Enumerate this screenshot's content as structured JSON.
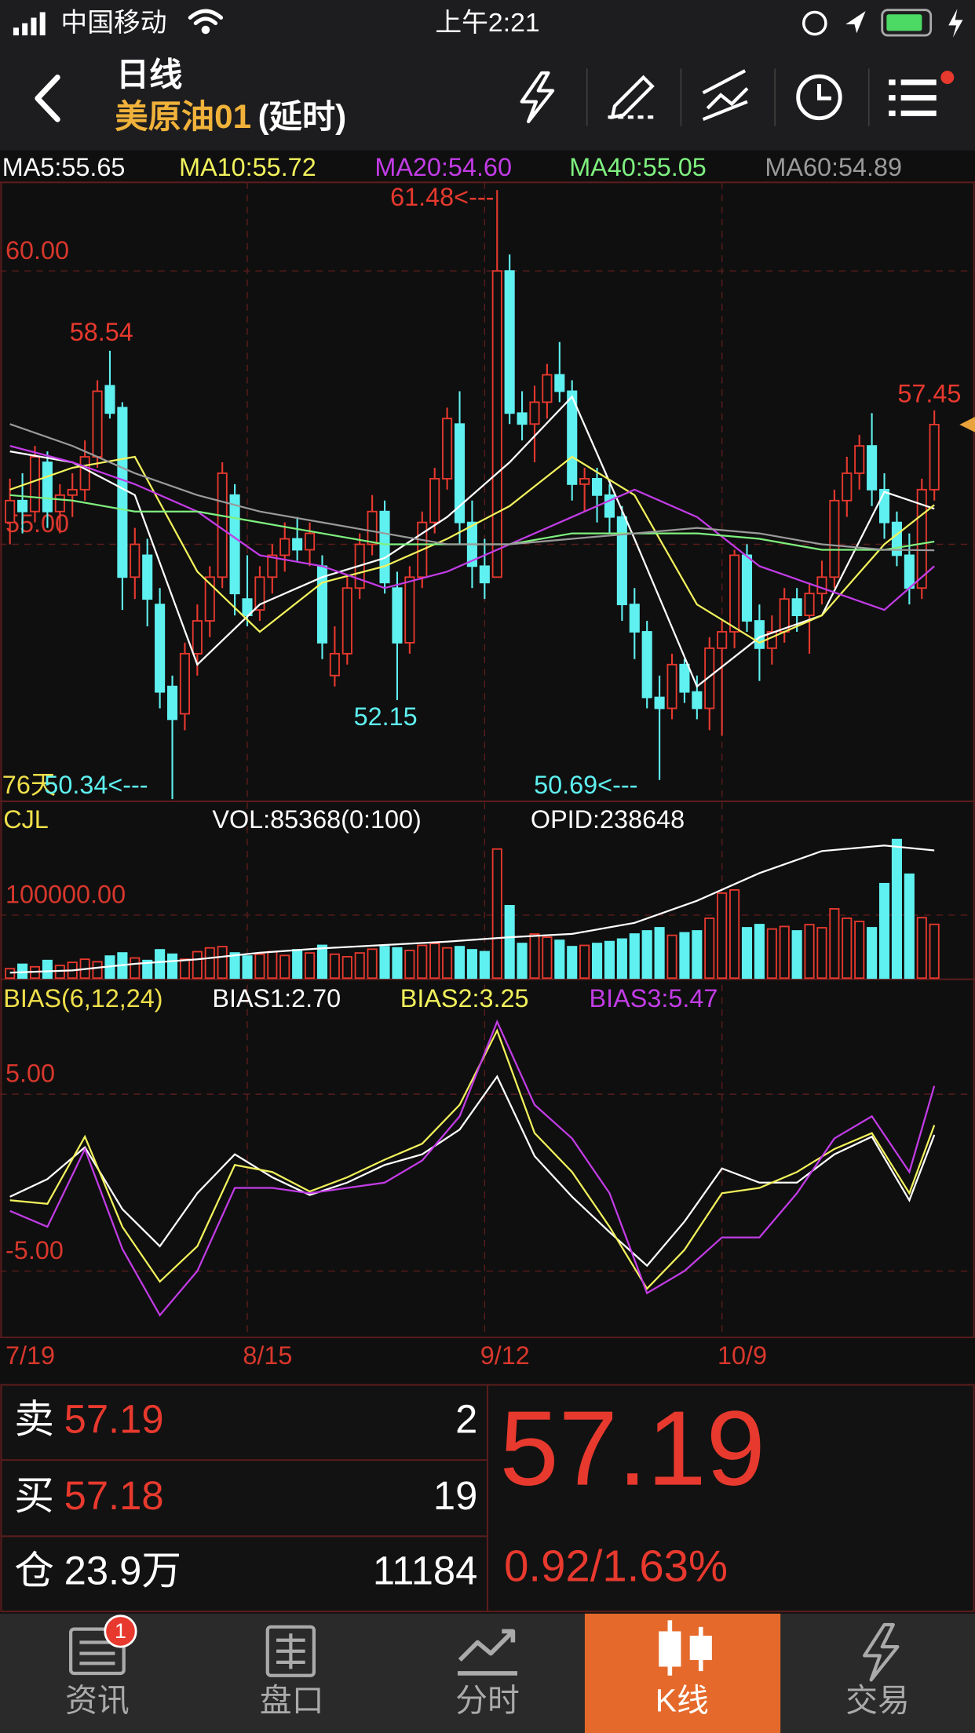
{
  "status_bar": {
    "carrier": "中国移动",
    "time": "上午2:21"
  },
  "header": {
    "title": "日线",
    "symbol": "美原油01",
    "delay": "(延时)"
  },
  "chart_data": [
    {
      "type": "candlestick",
      "categories": [
        "7/19",
        null,
        null,
        null,
        null,
        null,
        null,
        null,
        null,
        null,
        null,
        null,
        null,
        null,
        null,
        null,
        null,
        null,
        null,
        "8/15",
        null,
        null,
        null,
        null,
        null,
        null,
        null,
        null,
        null,
        null,
        null,
        null,
        null,
        null,
        null,
        null,
        null,
        null,
        "9/12",
        null,
        null,
        null,
        null,
        null,
        null,
        null,
        null,
        null,
        null,
        null,
        null,
        null,
        null,
        null,
        null,
        null,
        null,
        "10/9",
        null,
        null,
        null,
        null,
        null,
        null,
        null,
        null,
        null,
        null,
        null,
        null,
        null,
        null,
        null,
        null,
        null
      ],
      "ohlc": [
        [
          55.4,
          56.2,
          55.0,
          55.8
        ],
        [
          55.8,
          56.3,
          55.2,
          55.6
        ],
        [
          55.6,
          56.8,
          55.4,
          56.6
        ],
        [
          56.5,
          56.7,
          55.3,
          55.6
        ],
        [
          55.6,
          56.1,
          55.2,
          55.9
        ],
        [
          55.9,
          56.3,
          55.5,
          56.0
        ],
        [
          56.0,
          56.9,
          55.8,
          56.6
        ],
        [
          56.6,
          58.0,
          56.4,
          57.8
        ],
        [
          57.9,
          58.54,
          57.3,
          57.4
        ],
        [
          57.5,
          57.6,
          53.8,
          54.4
        ],
        [
          54.4,
          55.3,
          54.0,
          55.0
        ],
        [
          54.8,
          55.1,
          53.5,
          54.0
        ],
        [
          53.9,
          54.2,
          52.0,
          52.3
        ],
        [
          52.4,
          52.6,
          50.34,
          51.8
        ],
        [
          51.9,
          53.2,
          51.6,
          53.0
        ],
        [
          53.0,
          53.9,
          52.6,
          53.6
        ],
        [
          53.6,
          54.6,
          53.3,
          54.4
        ],
        [
          54.4,
          56.5,
          54.2,
          56.3
        ],
        [
          55.9,
          56.1,
          53.7,
          54.1
        ],
        [
          54.0,
          54.8,
          53.5,
          53.7
        ],
        [
          53.8,
          54.6,
          53.6,
          54.4
        ],
        [
          54.4,
          55.0,
          54.1,
          54.8
        ],
        [
          54.8,
          55.4,
          54.5,
          55.1
        ],
        [
          55.1,
          55.5,
          54.7,
          54.9
        ],
        [
          54.9,
          55.4,
          54.6,
          55.2
        ],
        [
          54.6,
          54.8,
          52.9,
          53.2
        ],
        [
          52.6,
          53.5,
          52.4,
          53.0
        ],
        [
          53.0,
          54.4,
          52.8,
          54.2
        ],
        [
          54.2,
          55.2,
          54.0,
          55.0
        ],
        [
          55.0,
          55.9,
          54.8,
          55.6
        ],
        [
          55.6,
          55.8,
          54.1,
          54.3
        ],
        [
          54.2,
          54.5,
          52.15,
          53.2
        ],
        [
          53.2,
          54.6,
          53.0,
          54.4
        ],
        [
          54.4,
          55.6,
          54.2,
          55.4
        ],
        [
          55.4,
          56.4,
          55.2,
          56.2
        ],
        [
          56.2,
          57.5,
          56.0,
          57.3
        ],
        [
          57.2,
          57.8,
          55.0,
          55.4
        ],
        [
          55.4,
          55.8,
          54.2,
          54.6
        ],
        [
          54.6,
          55.1,
          54.0,
          54.3
        ],
        [
          54.4,
          61.48,
          54.4,
          60.0
        ],
        [
          60.0,
          60.3,
          57.2,
          57.4
        ],
        [
          57.4,
          57.8,
          56.9,
          57.2
        ],
        [
          57.2,
          57.9,
          56.5,
          57.6
        ],
        [
          57.6,
          58.3,
          57.3,
          58.1
        ],
        [
          58.1,
          58.7,
          57.6,
          57.8
        ],
        [
          57.8,
          58.0,
          55.8,
          56.1
        ],
        [
          56.1,
          56.4,
          55.6,
          56.2
        ],
        [
          56.2,
          56.4,
          55.4,
          55.9
        ],
        [
          55.9,
          56.1,
          55.2,
          55.5
        ],
        [
          55.5,
          55.7,
          53.6,
          53.9
        ],
        [
          53.9,
          54.2,
          52.9,
          53.4
        ],
        [
          53.4,
          53.6,
          52.0,
          52.2
        ],
        [
          52.2,
          52.6,
          50.69,
          52.0
        ],
        [
          52.0,
          53.0,
          51.8,
          52.8
        ],
        [
          52.8,
          52.9,
          52.1,
          52.3
        ],
        [
          52.3,
          52.6,
          51.8,
          52.0
        ],
        [
          52.0,
          53.3,
          51.6,
          53.1
        ],
        [
          53.1,
          53.6,
          51.5,
          53.4
        ],
        [
          53.4,
          54.9,
          53.1,
          54.8
        ],
        [
          54.8,
          55.0,
          53.4,
          53.6
        ],
        [
          53.6,
          53.9,
          52.5,
          53.1
        ],
        [
          53.1,
          53.7,
          52.8,
          53.4
        ],
        [
          53.4,
          54.2,
          53.2,
          54.0
        ],
        [
          54.0,
          54.2,
          53.4,
          53.7
        ],
        [
          53.7,
          54.3,
          53.0,
          54.1
        ],
        [
          54.1,
          54.7,
          53.9,
          54.4
        ],
        [
          54.4,
          56.0,
          54.2,
          55.8
        ],
        [
          55.8,
          56.6,
          55.5,
          56.3
        ],
        [
          56.3,
          57.0,
          56.0,
          56.8
        ],
        [
          56.8,
          57.4,
          55.7,
          56.0
        ],
        [
          56.0,
          56.3,
          55.1,
          55.4
        ],
        [
          55.4,
          55.6,
          54.6,
          54.8
        ],
        [
          54.8,
          55.2,
          53.9,
          54.2
        ],
        [
          54.2,
          56.2,
          54.0,
          56.0
        ],
        [
          56.0,
          57.45,
          55.8,
          57.19
        ]
      ],
      "up_color": "#e8392e",
      "down_color": "#5ff0f0",
      "marker_color": "#e8a33a",
      "ylim": [
        50.3,
        61.62
      ],
      "yticks": [
        {
          "value": 55,
          "label": "55.00"
        },
        {
          "value": 60,
          "label": "60.00"
        }
      ],
      "grid": true,
      "lines": [
        {
          "label": "MA5:55.65",
          "color": "#ffffff",
          "x": [
            0,
            5,
            10,
            15,
            20,
            25,
            30,
            35,
            40,
            45,
            50,
            55,
            60,
            65,
            70,
            74
          ],
          "values": [
            56.7,
            56.5,
            55.9,
            52.8,
            53.9,
            54.4,
            54.75,
            55.5,
            56.5,
            57.7,
            55.1,
            52.4,
            53.3,
            53.7,
            55.96,
            55.65
          ]
        },
        {
          "label": "MA10:55.72",
          "color": "#f2f25c",
          "x": [
            0,
            5,
            10,
            15,
            20,
            25,
            30,
            35,
            40,
            45,
            50,
            55,
            60,
            65,
            70,
            74
          ],
          "values": [
            56.0,
            56.4,
            56.6,
            54.5,
            53.4,
            54.3,
            54.6,
            55.1,
            55.7,
            56.6,
            55.9,
            53.9,
            53.2,
            53.7,
            55.0,
            55.72
          ]
        },
        {
          "label": "MA20:54.60",
          "color": "#c23ce6",
          "x": [
            0,
            5,
            10,
            15,
            20,
            25,
            30,
            35,
            40,
            45,
            50,
            55,
            60,
            65,
            70,
            74
          ],
          "values": [
            56.8,
            56.5,
            56.1,
            55.6,
            54.8,
            54.6,
            54.2,
            54.5,
            55.0,
            55.5,
            56.0,
            55.5,
            54.6,
            54.2,
            53.8,
            54.6
          ]
        },
        {
          "label": "MA40:55.05",
          "color": "#7ff07f",
          "x": [
            0,
            5,
            10,
            15,
            20,
            25,
            30,
            35,
            40,
            45,
            50,
            55,
            60,
            65,
            70,
            74
          ],
          "values": [
            55.9,
            55.8,
            55.6,
            55.6,
            55.4,
            55.2,
            55.0,
            55.0,
            55.0,
            55.2,
            55.2,
            55.2,
            55.1,
            54.9,
            54.9,
            55.05
          ]
        },
        {
          "label": "MA60:54.89",
          "color": "#9a9a9a",
          "x": [
            0,
            5,
            10,
            15,
            20,
            25,
            30,
            35,
            40,
            45,
            50,
            55,
            60,
            65,
            70,
            74
          ],
          "values": [
            57.2,
            56.8,
            56.3,
            55.9,
            55.6,
            55.4,
            55.2,
            55.0,
            55.0,
            55.1,
            55.2,
            55.3,
            55.2,
            55.0,
            54.9,
            54.89
          ]
        }
      ],
      "annotations": [
        {
          "text": "61.48<---",
          "color": "#e8392e"
        },
        {
          "text": "58.54",
          "color": "#e8392e"
        },
        {
          "text": "52.15",
          "color": "#5ff0f0"
        },
        {
          "text": "50.69<---",
          "color": "#5ff0f0"
        },
        {
          "text": "57.45",
          "color": "#e8392e"
        },
        {
          "text": "76天",
          "color": "#f0e04a"
        },
        {
          "text": "50.34<---",
          "color": "#5ff0f0"
        }
      ]
    },
    {
      "type": "bar",
      "title": "CJL",
      "label": "VOL:85368(0:100)",
      "values": [
        15000,
        22000,
        18000,
        28000,
        20000,
        25000,
        30000,
        26000,
        35000,
        40000,
        32000,
        28000,
        45000,
        38000,
        30000,
        42000,
        48000,
        50000,
        40000,
        35000,
        38000,
        42000,
        36000,
        45000,
        40000,
        52000,
        38000,
        34000,
        40000,
        46000,
        50000,
        48000,
        44000,
        52000,
        55000,
        48000,
        50000,
        45000,
        42000,
        205000,
        115000,
        55000,
        70000,
        65000,
        60000,
        50000,
        52000,
        55000,
        58000,
        62000,
        70000,
        75000,
        80000,
        68000,
        72000,
        75000,
        95000,
        135000,
        140000,
        80000,
        85000,
        78000,
        82000,
        75000,
        85000,
        80000,
        110000,
        95000,
        90000,
        80000,
        150000,
        220000,
        165000,
        96000,
        85368
      ],
      "ylim": [
        0,
        272000
      ],
      "yticks": [
        {
          "value": 100000,
          "label": "100000.00"
        }
      ],
      "y2lim": [
        0,
        320000
      ],
      "lines": [
        {
          "label": "OPID:238648",
          "color": "#ffffff",
          "axis": "y2",
          "x": [
            0,
            5,
            10,
            15,
            20,
            25,
            30,
            35,
            40,
            45,
            50,
            55,
            60,
            65,
            70,
            74
          ],
          "values": [
            10300,
            14500,
            26800,
            35100,
            47500,
            55700,
            61900,
            68100,
            76400,
            82600,
            103200,
            144500,
            196100,
            237400,
            247700,
            238648
          ]
        }
      ]
    },
    {
      "type": "line",
      "title": "BIAS(6,12,24)",
      "ylim": [
        -8.75,
        10.94
      ],
      "yticks": [
        {
          "value": 5,
          "label": "5.00"
        },
        {
          "value": -5,
          "label": "-5.00"
        }
      ],
      "series": [
        {
          "label": "BIAS1:2.70",
          "color": "#ffffff",
          "x": [
            0,
            3,
            6,
            9,
            12,
            15,
            18,
            21,
            24,
            27,
            30,
            33,
            36,
            39,
            42,
            45,
            48,
            51,
            54,
            57,
            60,
            63,
            66,
            69,
            72,
            74
          ],
          "values": [
            -0.8,
            0.2,
            2.0,
            -1.5,
            -3.6,
            -0.6,
            1.6,
            0.3,
            -0.7,
            0.0,
            1.0,
            1.6,
            3.0,
            6.0,
            1.5,
            -0.8,
            -2.8,
            -4.7,
            -2.2,
            0.8,
            0.0,
            0.0,
            1.6,
            2.6,
            -1.0,
            2.7
          ]
        },
        {
          "label": "BIAS2:3.25",
          "color": "#f2f25c",
          "x": [
            0,
            3,
            6,
            9,
            12,
            15,
            18,
            21,
            24,
            27,
            30,
            33,
            36,
            39,
            42,
            45,
            48,
            51,
            54,
            57,
            60,
            63,
            66,
            69,
            72,
            74
          ],
          "values": [
            -1.0,
            -1.2,
            2.6,
            -2.5,
            -5.6,
            -3.6,
            1.0,
            0.6,
            -0.5,
            0.3,
            1.3,
            2.2,
            4.4,
            8.6,
            2.8,
            0.6,
            -2.5,
            -6.0,
            -3.8,
            -0.6,
            -0.3,
            0.6,
            1.9,
            2.8,
            -0.6,
            3.25
          ]
        },
        {
          "label": "BIAS3:5.47",
          "color": "#c23ce6",
          "x": [
            0,
            3,
            6,
            9,
            12,
            15,
            18,
            21,
            24,
            27,
            30,
            33,
            36,
            39,
            42,
            45,
            48,
            51,
            54,
            57,
            60,
            63,
            66,
            69,
            72,
            74
          ],
          "values": [
            -1.6,
            -2.5,
            1.9,
            -3.75,
            -7.5,
            -5,
            -0.3,
            -0.3,
            -0.6,
            -0.3,
            0,
            1.25,
            3.75,
            9.1,
            4.4,
            2.5,
            -0.6,
            -6.25,
            -5,
            -3.1,
            -3.1,
            -0.6,
            2.5,
            3.75,
            0.6,
            5.47
          ]
        }
      ]
    }
  ],
  "quote": {
    "rows": [
      {
        "label": "卖",
        "price": "57.19",
        "size": "2"
      },
      {
        "label": "买",
        "price": "57.18",
        "size": "19"
      },
      {
        "label": "仓",
        "price": "23.9万",
        "size": "11184"
      }
    ],
    "last": "57.19",
    "change": "0.92/1.63%"
  },
  "tabs": [
    {
      "label": "资讯",
      "badge": "1"
    },
    {
      "label": "盘口"
    },
    {
      "label": "分时"
    },
    {
      "label": "K线",
      "active": true
    },
    {
      "label": "交易"
    }
  ]
}
